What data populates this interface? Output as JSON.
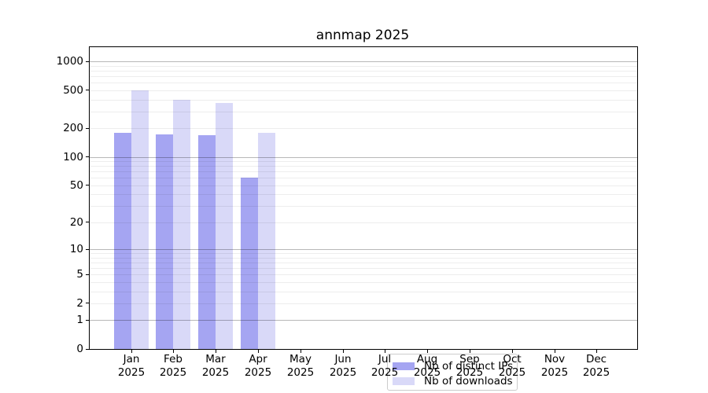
{
  "page": {
    "title": "annmap 2025"
  },
  "chart_data": {
    "type": "bar",
    "title": "annmap 2025",
    "categories": [
      "Jan",
      "Feb",
      "Mar",
      "Apr",
      "May",
      "Jun",
      "Jul",
      "Aug",
      "Sep",
      "Oct",
      "Nov",
      "Dec"
    ],
    "year_label": "2025",
    "series": [
      {
        "name": "Nb of distinct IPs",
        "color": "#a5a5f2",
        "values": [
          180,
          172,
          168,
          60,
          null,
          null,
          null,
          null,
          null,
          null,
          null,
          null
        ]
      },
      {
        "name": "Nb of downloads",
        "color": "#d9d9f8",
        "values": [
          500,
          400,
          370,
          180,
          null,
          null,
          null,
          null,
          null,
          null,
          null,
          null
        ]
      }
    ],
    "xlabel": "",
    "ylabel": "",
    "yscale": "log1p",
    "yticks": [
      1000,
      500,
      200,
      100,
      50,
      20,
      10,
      5,
      2,
      1,
      0
    ],
    "ylim": [
      0,
      1412
    ],
    "grid": "horizontal",
    "grid_major_at": [
      1,
      10,
      100,
      1000
    ],
    "legend_position": "bottom-center-inside",
    "text_color": "#000000",
    "spine_color": "#000000"
  }
}
